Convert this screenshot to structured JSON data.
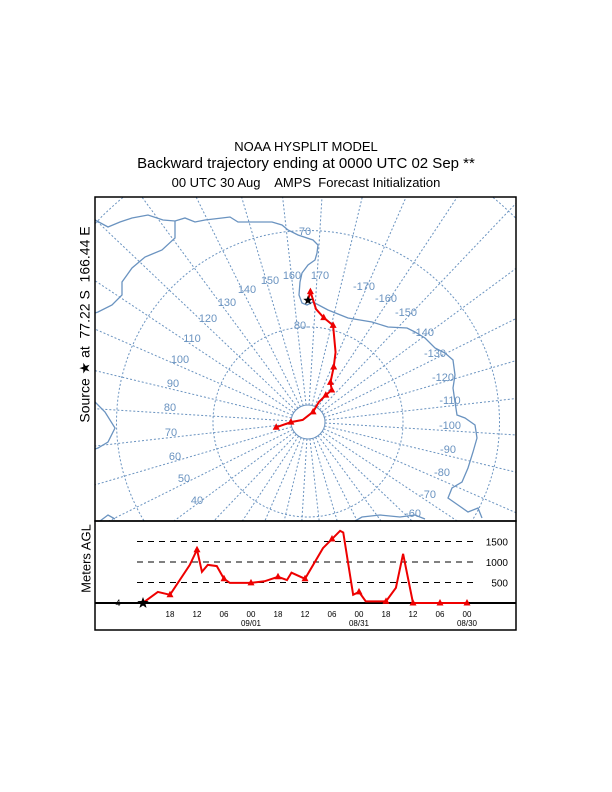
{
  "chart_data": {
    "type": "line",
    "title": "NOAA HYSPLIT MODEL",
    "subtitle": "Backward trajectory ending at 0000 UTC 02 Sep **",
    "subtitle2": "00 UTC 30 Aug    AMPS  Forecast Initialization",
    "map": {
      "projection": "south polar stereographic",
      "source_label": "Source ★ at  77.22 S  166.44 E",
      "source": {
        "lat": -77.22,
        "lon": 166.44
      },
      "latitude_labels": [
        "70",
        "80"
      ],
      "longitude_labels": [
        "150",
        "160",
        "170",
        "-170",
        "-160",
        "-150",
        "-140",
        "-130",
        "-120",
        "-110",
        "-100",
        "-90",
        "-80",
        "-70",
        "-60",
        "140",
        "130",
        "120",
        "110",
        "100",
        "90",
        "80",
        "70",
        "60",
        "50",
        "40"
      ],
      "trajectory": [
        {
          "lat": -77.22,
          "lon": 166.44,
          "marker": false
        },
        {
          "lat": -76.3,
          "lon": 167.5,
          "marker": true
        },
        {
          "lat": -78.1,
          "lon": 170.5,
          "marker": false
        },
        {
          "lat": -78.9,
          "lon": 175.0,
          "marker": true
        },
        {
          "lat": -79.5,
          "lon": -179.0,
          "marker": true
        },
        {
          "lat": -82.1,
          "lon": -172.0,
          "marker": false
        },
        {
          "lat": -83.6,
          "lon": -168.5,
          "marker": true
        },
        {
          "lat": -85.2,
          "lon": -164.0,
          "marker": true
        },
        {
          "lat": -85.8,
          "lon": -157.0,
          "marker": true
        },
        {
          "lat": -86.6,
          "lon": -160.0,
          "marker": true
        },
        {
          "lat": -87.6,
          "lon": -165.0,
          "marker": false
        },
        {
          "lat": -88.8,
          "lon": -167.0,
          "marker": true
        },
        {
          "lat": -89.4,
          "lon": 98.0,
          "marker": false
        },
        {
          "lat": -88.2,
          "lon": 76.0,
          "marker": true
        },
        {
          "lat": -86.6,
          "lon": 67.0,
          "marker": true
        }
      ]
    },
    "height": {
      "ylabel": "Meters AGL",
      "start_height_label": "4",
      "ylim": [
        0,
        1800
      ],
      "gridlines": [
        {
          "value": 500,
          "label": "500"
        },
        {
          "value": 1000,
          "label": "1000"
        },
        {
          "value": 1500,
          "label": "1500"
        }
      ],
      "x_hours_back_range": [
        0,
        72
      ],
      "x_ticks": [
        {
          "hours_back": 6,
          "label": "18",
          "date": ""
        },
        {
          "hours_back": 12,
          "label": "12",
          "date": ""
        },
        {
          "hours_back": 18,
          "label": "06",
          "date": ""
        },
        {
          "hours_back": 24,
          "label": "00",
          "date": "09/01"
        },
        {
          "hours_back": 30,
          "label": "18",
          "date": ""
        },
        {
          "hours_back": 36,
          "label": "12",
          "date": ""
        },
        {
          "hours_back": 42,
          "label": "06",
          "date": ""
        },
        {
          "hours_back": 48,
          "label": "00",
          "date": "08/31"
        },
        {
          "hours_back": 54,
          "label": "18",
          "date": ""
        },
        {
          "hours_back": 60,
          "label": "12",
          "date": ""
        },
        {
          "hours_back": 66,
          "label": "06",
          "date": ""
        },
        {
          "hours_back": 72,
          "label": "00",
          "date": "08/30"
        }
      ],
      "series": [
        [
          0,
          4
        ],
        [
          3.3,
          270
        ],
        [
          6,
          200
        ],
        [
          10.4,
          930
        ],
        [
          12,
          1300
        ],
        [
          13.1,
          760
        ],
        [
          14.4,
          930
        ],
        [
          16.4,
          900
        ],
        [
          18,
          590
        ],
        [
          19.3,
          490
        ],
        [
          24,
          490
        ],
        [
          27,
          530
        ],
        [
          30,
          640
        ],
        [
          32,
          560
        ],
        [
          33,
          740
        ],
        [
          36,
          590
        ],
        [
          40,
          1340
        ],
        [
          42,
          1560
        ],
        [
          43.8,
          1760
        ],
        [
          44.5,
          1720
        ],
        [
          46.7,
          200
        ],
        [
          48,
          270
        ],
        [
          49.5,
          40
        ],
        [
          54,
          40
        ],
        [
          56.2,
          370
        ],
        [
          57.8,
          1200
        ],
        [
          60,
          0
        ],
        [
          66,
          0
        ],
        [
          72,
          0
        ]
      ]
    },
    "colors": {
      "trajectory": "#ee0000",
      "map": "#6a93c0"
    }
  }
}
